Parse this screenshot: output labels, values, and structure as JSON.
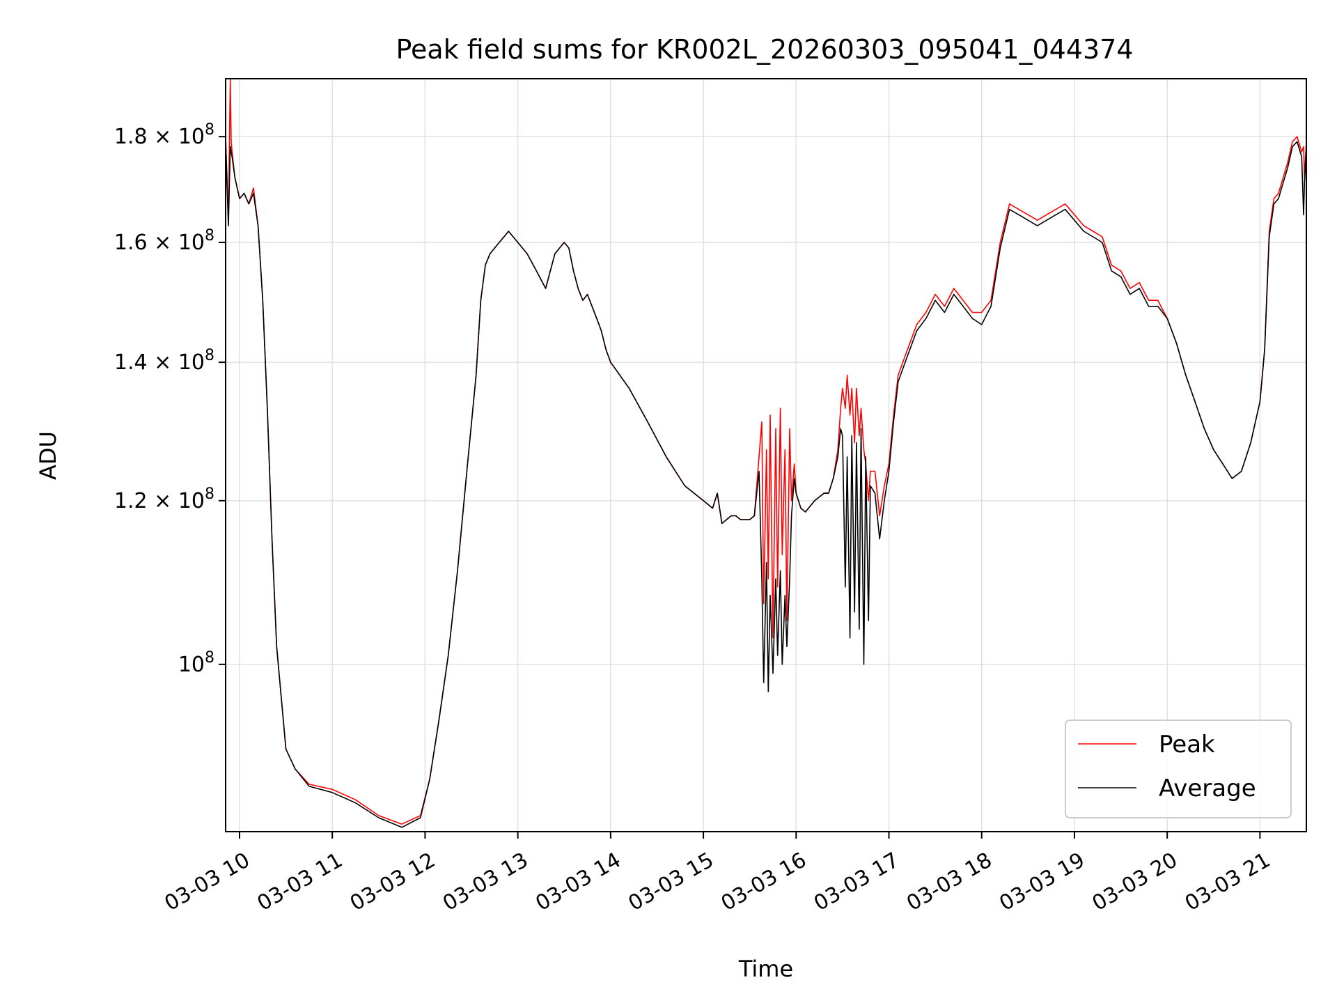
{
  "chart_data": {
    "type": "line",
    "title": "Peak field sums for KR002L_20260303_095041_044374",
    "xlabel": "Time",
    "ylabel": "ADU",
    "x_tick_labels": [
      "03-03 10",
      "03-03 11",
      "03-03 12",
      "03-03 13",
      "03-03 14",
      "03-03 15",
      "03-03 16",
      "03-03 17",
      "03-03 18",
      "03-03 19",
      "03-03 20",
      "03-03 21"
    ],
    "x_ticks_hours": [
      10,
      11,
      12,
      13,
      14,
      15,
      16,
      17,
      18,
      19,
      20,
      21
    ],
    "xlim_hours": [
      9.85,
      21.5
    ],
    "y_scale": "log",
    "ylim": [
      83000000,
      192000000
    ],
    "y_ticks": [
      {
        "value": 100000000,
        "mantissa": "",
        "exp": "8"
      },
      {
        "value": 120000000,
        "mantissa": "1.2",
        "exp": "8"
      },
      {
        "value": 140000000,
        "mantissa": "1.4",
        "exp": "8"
      },
      {
        "value": 160000000,
        "mantissa": "1.6",
        "exp": "8"
      },
      {
        "value": 180000000,
        "mantissa": "1.8",
        "exp": "8"
      }
    ],
    "grid": true,
    "legend_position": "lower right",
    "series": [
      {
        "name": "Peak",
        "color": "#ff0000",
        "x": [
          9.85,
          9.88,
          9.9,
          9.91,
          9.92,
          9.95,
          10.0,
          10.05,
          10.1,
          10.15,
          10.2,
          10.25,
          10.3,
          10.35,
          10.4,
          10.5,
          10.6,
          10.75,
          11.0,
          11.25,
          11.5,
          11.75,
          11.95,
          12.05,
          12.15,
          12.25,
          12.35,
          12.45,
          12.55,
          12.6,
          12.65,
          12.7,
          12.75,
          12.8,
          12.85,
          12.9,
          13.0,
          13.1,
          13.2,
          13.3,
          13.4,
          13.5,
          13.55,
          13.6,
          13.65,
          13.7,
          13.75,
          13.8,
          13.85,
          13.9,
          13.95,
          14.0,
          14.2,
          14.4,
          14.6,
          14.8,
          15.0,
          15.1,
          15.15,
          15.2,
          15.25,
          15.3,
          15.35,
          15.4,
          15.5,
          15.55,
          15.6,
          15.63,
          15.65,
          15.68,
          15.7,
          15.72,
          15.75,
          15.78,
          15.8,
          15.83,
          15.85,
          15.88,
          15.9,
          15.93,
          15.95,
          15.98,
          16.0,
          16.05,
          16.1,
          16.2,
          16.3,
          16.35,
          16.4,
          16.45,
          16.48,
          16.5,
          16.53,
          16.55,
          16.58,
          16.6,
          16.63,
          16.65,
          16.68,
          16.7,
          16.73,
          16.75,
          16.78,
          16.8,
          16.85,
          16.9,
          16.95,
          17.0,
          17.05,
          17.1,
          17.2,
          17.3,
          17.4,
          17.5,
          17.6,
          17.7,
          17.8,
          17.9,
          18.0,
          18.1,
          18.2,
          18.3,
          18.4,
          18.5,
          18.6,
          18.7,
          18.8,
          18.9,
          19.0,
          19.1,
          19.2,
          19.3,
          19.4,
          19.5,
          19.6,
          19.7,
          19.8,
          19.9,
          20.0,
          20.1,
          20.2,
          20.3,
          20.4,
          20.5,
          20.6,
          20.7,
          20.8,
          20.9,
          21.0,
          21.05,
          21.1,
          21.15,
          21.2,
          21.25,
          21.3,
          21.35,
          21.4,
          21.45,
          21.47,
          21.48,
          21.5
        ],
        "y": [
          180000000,
          164000000,
          192000000,
          179000000,
          177000000,
          172000000,
          168000000,
          169000000,
          167000000,
          170000000,
          163000000,
          150000000,
          133000000,
          115000000,
          102000000,
          91000000,
          89000000,
          87500000,
          87000000,
          86000000,
          84500000,
          83700000,
          84500000,
          88000000,
          94000000,
          101000000,
          111000000,
          124000000,
          138000000,
          150000000,
          156000000,
          158000000,
          159000000,
          160000000,
          161000000,
          162000000,
          160000000,
          158000000,
          155000000,
          152000000,
          158000000,
          160000000,
          159000000,
          155000000,
          152000000,
          150000000,
          151000000,
          149000000,
          147000000,
          145000000,
          142000000,
          140000000,
          136000000,
          131000000,
          126000000,
          122000000,
          120000000,
          119000000,
          121000000,
          117000000,
          117500000,
          118000000,
          118000000,
          117500000,
          117500000,
          118000000,
          126000000,
          131000000,
          107000000,
          127000000,
          110000000,
          132000000,
          103000000,
          130000000,
          109000000,
          133000000,
          113000000,
          127000000,
          105000000,
          130000000,
          120000000,
          125000000,
          121000000,
          119000000,
          118500000,
          120000000,
          121000000,
          121000000,
          123000000,
          127000000,
          133000000,
          136000000,
          133000000,
          138000000,
          132000000,
          136000000,
          128000000,
          136000000,
          129000000,
          133000000,
          127000000,
          125000000,
          120000000,
          124000000,
          124000000,
          118000000,
          122000000,
          125000000,
          132000000,
          138000000,
          142000000,
          146000000,
          148000000,
          151000000,
          149000000,
          152000000,
          150000000,
          148000000,
          148000000,
          150000000,
          160000000,
          167000000,
          166000000,
          165000000,
          164000000,
          165000000,
          166000000,
          167000000,
          165000000,
          163000000,
          162000000,
          161000000,
          156000000,
          155000000,
          152000000,
          153000000,
          150000000,
          150000000,
          147000000,
          143000000,
          138000000,
          134000000,
          130000000,
          127000000,
          125000000,
          123000000,
          124000000,
          128000000,
          134000000,
          142000000,
          162000000,
          168000000,
          169000000,
          172000000,
          175000000,
          179000000,
          180000000,
          177000000,
          178000000,
          172000000,
          179000000
        ]
      },
      {
        "name": "Average",
        "color": "#000000",
        "x": [
          9.85,
          9.88,
          9.9,
          9.91,
          9.92,
          9.95,
          10.0,
          10.05,
          10.1,
          10.15,
          10.2,
          10.25,
          10.3,
          10.35,
          10.4,
          10.5,
          10.6,
          10.75,
          11.0,
          11.25,
          11.5,
          11.75,
          11.95,
          12.05,
          12.15,
          12.25,
          12.35,
          12.45,
          12.55,
          12.6,
          12.65,
          12.7,
          12.75,
          12.8,
          12.85,
          12.9,
          13.0,
          13.1,
          13.2,
          13.3,
          13.4,
          13.5,
          13.55,
          13.6,
          13.65,
          13.7,
          13.75,
          13.8,
          13.85,
          13.9,
          13.95,
          14.0,
          14.2,
          14.4,
          14.6,
          14.8,
          15.0,
          15.1,
          15.15,
          15.2,
          15.25,
          15.3,
          15.35,
          15.4,
          15.5,
          15.55,
          15.6,
          15.63,
          15.65,
          15.68,
          15.7,
          15.72,
          15.75,
          15.78,
          15.8,
          15.83,
          15.85,
          15.88,
          15.9,
          15.93,
          15.95,
          15.98,
          16.0,
          16.05,
          16.1,
          16.2,
          16.3,
          16.35,
          16.4,
          16.45,
          16.48,
          16.5,
          16.53,
          16.55,
          16.58,
          16.6,
          16.63,
          16.65,
          16.68,
          16.7,
          16.73,
          16.75,
          16.78,
          16.8,
          16.85,
          16.9,
          16.95,
          17.0,
          17.05,
          17.1,
          17.2,
          17.3,
          17.4,
          17.5,
          17.6,
          17.7,
          17.8,
          17.9,
          18.0,
          18.1,
          18.2,
          18.3,
          18.4,
          18.5,
          18.6,
          18.7,
          18.8,
          18.9,
          19.0,
          19.1,
          19.2,
          19.3,
          19.4,
          19.5,
          19.6,
          19.7,
          19.8,
          19.9,
          20.0,
          20.1,
          20.2,
          20.3,
          20.4,
          20.5,
          20.6,
          20.7,
          20.8,
          20.9,
          21.0,
          21.05,
          21.1,
          21.15,
          21.2,
          21.25,
          21.3,
          21.35,
          21.4,
          21.45,
          21.47,
          21.48,
          21.5
        ],
        "y": [
          179000000,
          163000000,
          178000000,
          177000000,
          176000000,
          172000000,
          168000000,
          169000000,
          167000000,
          169000000,
          163000000,
          150000000,
          133000000,
          115000000,
          102000000,
          91000000,
          89000000,
          87300000,
          86700000,
          85700000,
          84300000,
          83400000,
          84300000,
          88000000,
          94000000,
          101000000,
          111000000,
          124000000,
          138000000,
          150000000,
          156000000,
          158000000,
          159000000,
          160000000,
          161000000,
          162000000,
          160000000,
          158000000,
          155000000,
          152000000,
          158000000,
          160000000,
          159000000,
          155000000,
          152000000,
          150000000,
          151000000,
          149000000,
          147000000,
          145000000,
          142000000,
          140000000,
          136000000,
          131000000,
          126000000,
          122000000,
          120000000,
          119000000,
          121000000,
          117000000,
          117500000,
          118000000,
          118000000,
          117500000,
          117500000,
          118000000,
          124000000,
          110000000,
          98000000,
          112000000,
          97000000,
          108000000,
          99000000,
          110000000,
          101000000,
          111000000,
          100000000,
          108000000,
          102000000,
          110000000,
          118000000,
          123000000,
          121000000,
          119000000,
          118500000,
          120000000,
          121000000,
          121000000,
          123000000,
          126000000,
          130000000,
          129000000,
          109000000,
          126000000,
          103000000,
          129000000,
          106000000,
          128000000,
          104000000,
          130000000,
          100000000,
          126000000,
          105000000,
          122000000,
          121000000,
          115000000,
          120000000,
          124000000,
          131000000,
          137000000,
          141000000,
          145000000,
          147000000,
          150000000,
          148000000,
          151000000,
          149000000,
          147000000,
          146000000,
          149000000,
          159000000,
          166000000,
          165000000,
          164000000,
          163000000,
          164000000,
          165000000,
          166000000,
          164000000,
          162000000,
          161000000,
          160000000,
          155000000,
          154000000,
          151000000,
          152000000,
          149000000,
          149000000,
          147000000,
          143000000,
          138000000,
          134000000,
          130000000,
          127000000,
          125000000,
          123000000,
          124000000,
          128000000,
          134000000,
          142000000,
          161000000,
          167000000,
          168000000,
          171000000,
          174000000,
          178000000,
          179000000,
          176000000,
          165000000,
          171000000,
          178000000
        ]
      }
    ]
  }
}
